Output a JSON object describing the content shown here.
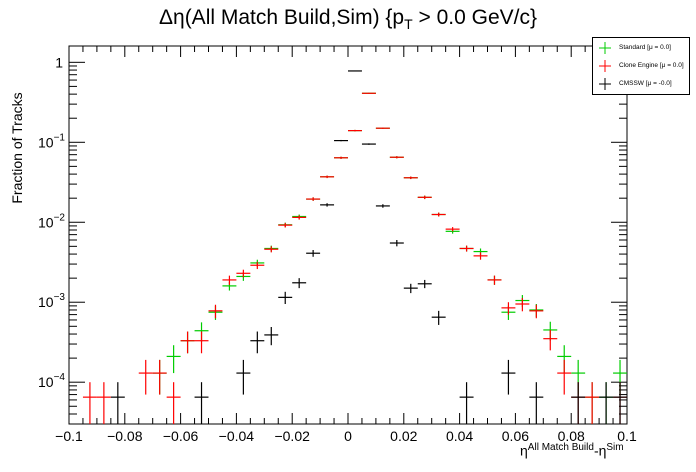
{
  "title": "Δη(All Match Build,Sim) {p_T > 0.0 GeV/c}",
  "title_parts": {
    "pre": "Δη(All Match Build,Sim) {p",
    "sub": "T",
    "post": "> 0.0 GeV/c}"
  },
  "xlabel_parts": {
    "base": "η",
    "sup1": "All Match Build",
    "mid": "-η",
    "sup2": "Sim"
  },
  "ylabel": "Fraction of Tracks",
  "colors": {
    "standard": "#00cc00",
    "clone": "#ff0000",
    "cmssw": "#000000",
    "axis": "#000000"
  },
  "legend": [
    {
      "label": "Standard  [μ = 0.0]",
      "color": "#00cc00"
    },
    {
      "label": "Clone Engine  [μ = 0.0]",
      "color": "#ff0000"
    },
    {
      "label": "CMSSW  [μ = -0.0]",
      "color": "#000000"
    }
  ],
  "chart_data": {
    "type": "scatter",
    "title": "Δη(All Match Build,Sim) {p_T > 0.0 GeV/c}",
    "xlabel": "η^{All Match Build}-η^{Sim}",
    "ylabel": "Fraction of Tracks",
    "xlim": [
      -0.1,
      0.1
    ],
    "ylim": [
      3e-05,
      1.6
    ],
    "log_y": true,
    "bin_width": 0.005,
    "grid": false,
    "legend_position": "top-right",
    "x_ticks": [
      "−0.1",
      "−0.08",
      "−0.06",
      "−0.04",
      "−0.02",
      "0",
      "0.02",
      "0.04",
      "0.06",
      "0.08",
      "0.1"
    ],
    "y_ticks": [
      {
        "base": "10",
        "exp": "−4",
        "value": 0.0001
      },
      {
        "base": "10",
        "exp": "−3",
        "value": 0.001
      },
      {
        "base": "10",
        "exp": "−2",
        "value": 0.01
      },
      {
        "base": "10",
        "exp": "−1",
        "value": 0.1
      },
      {
        "base": "1",
        "exp": "",
        "value": 1
      }
    ],
    "series": [
      {
        "name": "Standard  [μ = 0.0]",
        "color": "#00cc00",
        "points": [
          {
            "x": -0.0675,
            "y": 0.00013,
            "err": 6e-05
          },
          {
            "x": -0.0625,
            "y": 0.00021,
            "err": 8e-05
          },
          {
            "x": -0.0575,
            "y": 0.00033,
            "err": 0.0001
          },
          {
            "x": -0.0525,
            "y": 0.00044,
            "err": 0.00012
          },
          {
            "x": -0.0475,
            "y": 0.00075,
            "err": 0.00015
          },
          {
            "x": -0.0425,
            "y": 0.0016,
            "err": 0.0002
          },
          {
            "x": -0.0375,
            "y": 0.0021,
            "err": 0.00025
          },
          {
            "x": -0.0325,
            "y": 0.0031,
            "err": 0.0003
          },
          {
            "x": -0.0275,
            "y": 0.0047,
            "err": 0.0004
          },
          {
            "x": -0.0225,
            "y": 0.0093,
            "err": 0.0006
          },
          {
            "x": -0.0175,
            "y": 0.0118,
            "err": 0.0007
          },
          {
            "x": -0.0125,
            "y": 0.0195,
            "err": 0.001
          },
          {
            "x": -0.0075,
            "y": 0.037,
            "err": 0.0013
          },
          {
            "x": -0.0025,
            "y": 0.064,
            "err": 0.002
          },
          {
            "x": 0.0025,
            "y": 0.14,
            "err": 0.003
          },
          {
            "x": 0.0075,
            "y": 0.41,
            "err": 0.005
          },
          {
            "x": 0.0125,
            "y": 0.15,
            "err": 0.003
          },
          {
            "x": 0.0175,
            "y": 0.065,
            "err": 0.002
          },
          {
            "x": 0.0225,
            "y": 0.036,
            "err": 0.0013
          },
          {
            "x": 0.0275,
            "y": 0.0205,
            "err": 0.001
          },
          {
            "x": 0.0325,
            "y": 0.0125,
            "err": 0.0007
          },
          {
            "x": 0.0375,
            "y": 0.0077,
            "err": 0.0005
          },
          {
            "x": 0.0425,
            "y": 0.0047,
            "err": 0.0004
          },
          {
            "x": 0.0475,
            "y": 0.0043,
            "err": 0.0004
          },
          {
            "x": 0.0525,
            "y": 0.0019,
            "err": 0.00025
          },
          {
            "x": 0.0575,
            "y": 0.00075,
            "err": 0.00015
          },
          {
            "x": 0.0625,
            "y": 0.00105,
            "err": 0.00018
          },
          {
            "x": 0.0675,
            "y": 0.0008,
            "err": 0.00015
          },
          {
            "x": 0.0725,
            "y": 0.00045,
            "err": 0.00012
          },
          {
            "x": 0.0775,
            "y": 0.00021,
            "err": 8e-05
          },
          {
            "x": 0.0825,
            "y": 0.00013,
            "err": 6e-05
          },
          {
            "x": 0.0875,
            "y": 6.5e-05,
            "err": 3.5e-05
          },
          {
            "x": 0.0925,
            "y": 6.5e-05,
            "err": 3.5e-05
          },
          {
            "x": 0.0975,
            "y": 0.00013,
            "err": 6e-05
          }
        ]
      },
      {
        "name": "Clone Engine  [μ = 0.0]",
        "color": "#ff0000",
        "points": [
          {
            "x": -0.0925,
            "y": 6.5e-05,
            "err": 3.5e-05
          },
          {
            "x": -0.0875,
            "y": 6.5e-05,
            "err": 3.5e-05
          },
          {
            "x": -0.0725,
            "y": 0.00013,
            "err": 6e-05
          },
          {
            "x": -0.0675,
            "y": 0.00013,
            "err": 6e-05
          },
          {
            "x": -0.0625,
            "y": 6.5e-05,
            "err": 3.5e-05
          },
          {
            "x": -0.0575,
            "y": 0.00033,
            "err": 0.0001
          },
          {
            "x": -0.0525,
            "y": 0.00033,
            "err": 0.0001
          },
          {
            "x": -0.0475,
            "y": 0.00078,
            "err": 0.00015
          },
          {
            "x": -0.0425,
            "y": 0.0019,
            "err": 0.00025
          },
          {
            "x": -0.0375,
            "y": 0.0023,
            "err": 0.00025
          },
          {
            "x": -0.0325,
            "y": 0.0029,
            "err": 0.0003
          },
          {
            "x": -0.0275,
            "y": 0.0046,
            "err": 0.0004
          },
          {
            "x": -0.0225,
            "y": 0.0092,
            "err": 0.0006
          },
          {
            "x": -0.0175,
            "y": 0.0115,
            "err": 0.0007
          },
          {
            "x": -0.0125,
            "y": 0.0195,
            "err": 0.001
          },
          {
            "x": -0.0075,
            "y": 0.037,
            "err": 0.0013
          },
          {
            "x": -0.0025,
            "y": 0.064,
            "err": 0.002
          },
          {
            "x": 0.0025,
            "y": 0.14,
            "err": 0.003
          },
          {
            "x": 0.0075,
            "y": 0.41,
            "err": 0.005
          },
          {
            "x": 0.0125,
            "y": 0.15,
            "err": 0.003
          },
          {
            "x": 0.0175,
            "y": 0.065,
            "err": 0.002
          },
          {
            "x": 0.0225,
            "y": 0.036,
            "err": 0.0013
          },
          {
            "x": 0.0275,
            "y": 0.0205,
            "err": 0.001
          },
          {
            "x": 0.0325,
            "y": 0.0125,
            "err": 0.0007
          },
          {
            "x": 0.0375,
            "y": 0.0082,
            "err": 0.0005
          },
          {
            "x": 0.0425,
            "y": 0.0047,
            "err": 0.0004
          },
          {
            "x": 0.0475,
            "y": 0.0038,
            "err": 0.0004
          },
          {
            "x": 0.0525,
            "y": 0.0019,
            "err": 0.00025
          },
          {
            "x": 0.0575,
            "y": 0.00085,
            "err": 0.00015
          },
          {
            "x": 0.0625,
            "y": 0.00095,
            "err": 0.00018
          },
          {
            "x": 0.0675,
            "y": 0.00078,
            "err": 0.00015
          },
          {
            "x": 0.0725,
            "y": 0.00035,
            "err": 0.0001
          },
          {
            "x": 0.0775,
            "y": 0.00013,
            "err": 6e-05
          },
          {
            "x": 0.0825,
            "y": 6.5e-05,
            "err": 3.5e-05
          },
          {
            "x": 0.0875,
            "y": 6.5e-05,
            "err": 3.5e-05
          },
          {
            "x": 0.0975,
            "y": 6.5e-05,
            "err": 3.5e-05
          }
        ]
      },
      {
        "name": "CMSSW  [μ = -0.0]",
        "color": "#000000",
        "points": [
          {
            "x": -0.0825,
            "y": 6.5e-05,
            "err": 3.5e-05
          },
          {
            "x": -0.0525,
            "y": 6.5e-05,
            "err": 3.5e-05
          },
          {
            "x": -0.0375,
            "y": 0.00013,
            "err": 6e-05
          },
          {
            "x": -0.0325,
            "y": 0.00033,
            "err": 0.0001
          },
          {
            "x": -0.0275,
            "y": 0.00039,
            "err": 0.0001
          },
          {
            "x": -0.0225,
            "y": 0.00115,
            "err": 0.0002
          },
          {
            "x": -0.0175,
            "y": 0.00175,
            "err": 0.00025
          },
          {
            "x": -0.0125,
            "y": 0.0041,
            "err": 0.0004
          },
          {
            "x": -0.0075,
            "y": 0.0165,
            "err": 0.0008
          },
          {
            "x": -0.0025,
            "y": 0.105,
            "err": 0.002
          },
          {
            "x": 0.0025,
            "y": 0.78,
            "err": 0.006
          },
          {
            "x": 0.0075,
            "y": 0.095,
            "err": 0.002
          },
          {
            "x": 0.0125,
            "y": 0.016,
            "err": 0.0008
          },
          {
            "x": 0.0175,
            "y": 0.0055,
            "err": 0.0005
          },
          {
            "x": 0.0225,
            "y": 0.0015,
            "err": 0.0002
          },
          {
            "x": 0.0275,
            "y": 0.0017,
            "err": 0.0002
          },
          {
            "x": 0.0325,
            "y": 0.00065,
            "err": 0.00013
          },
          {
            "x": 0.0425,
            "y": 6.5e-05,
            "err": 3.5e-05
          },
          {
            "x": 0.0575,
            "y": 0.00013,
            "err": 6e-05
          },
          {
            "x": 0.0675,
            "y": 6.5e-05,
            "err": 3.5e-05
          },
          {
            "x": 0.0825,
            "y": 6.5e-05,
            "err": 3.5e-05
          },
          {
            "x": 0.0925,
            "y": 6.5e-05,
            "err": 3.5e-05
          },
          {
            "x": 0.0975,
            "y": 6.5e-05,
            "err": 3.5e-05
          }
        ]
      }
    ]
  }
}
